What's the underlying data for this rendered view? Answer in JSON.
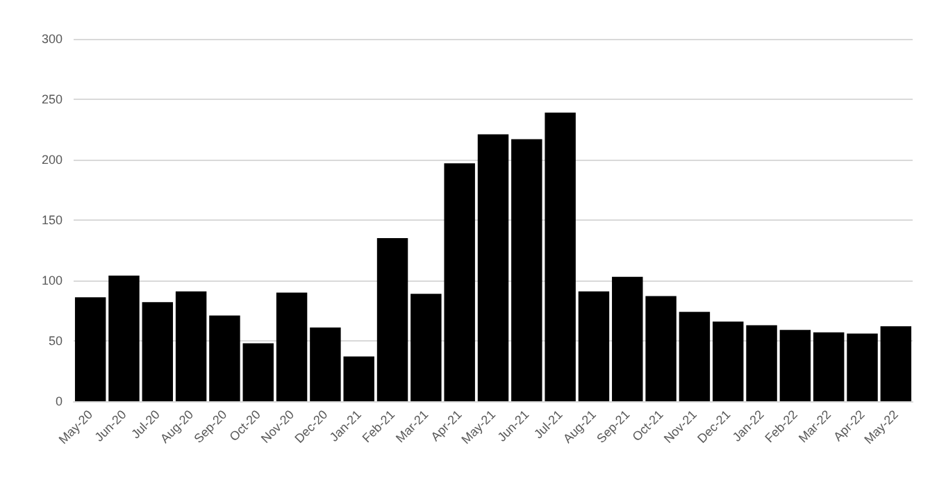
{
  "chart_data": {
    "type": "bar",
    "categories": [
      "May-20",
      "Jun-20",
      "Jul-20",
      "Aug-20",
      "Sep-20",
      "Oct-20",
      "Nov-20",
      "Dec-20",
      "Jan-21",
      "Feb-21",
      "Mar-21",
      "Apr-21",
      "May-21",
      "Jun-21",
      "Jul-21",
      "Aug-21",
      "Sep-21",
      "Oct-21",
      "Nov-21",
      "Dec-21",
      "Jan-22",
      "Feb-22",
      "Mar-22",
      "Apr-22",
      "May-22"
    ],
    "values": [
      86,
      104,
      82,
      91,
      71,
      48,
      90,
      61,
      37,
      135,
      89,
      197,
      221,
      217,
      239,
      91,
      103,
      87,
      74,
      66,
      63,
      59,
      57,
      56,
      62
    ],
    "color": "#000000",
    "ylim": [
      0,
      300
    ],
    "yticks": [
      0,
      50,
      100,
      150,
      200,
      250,
      300
    ],
    "grid": "y"
  }
}
